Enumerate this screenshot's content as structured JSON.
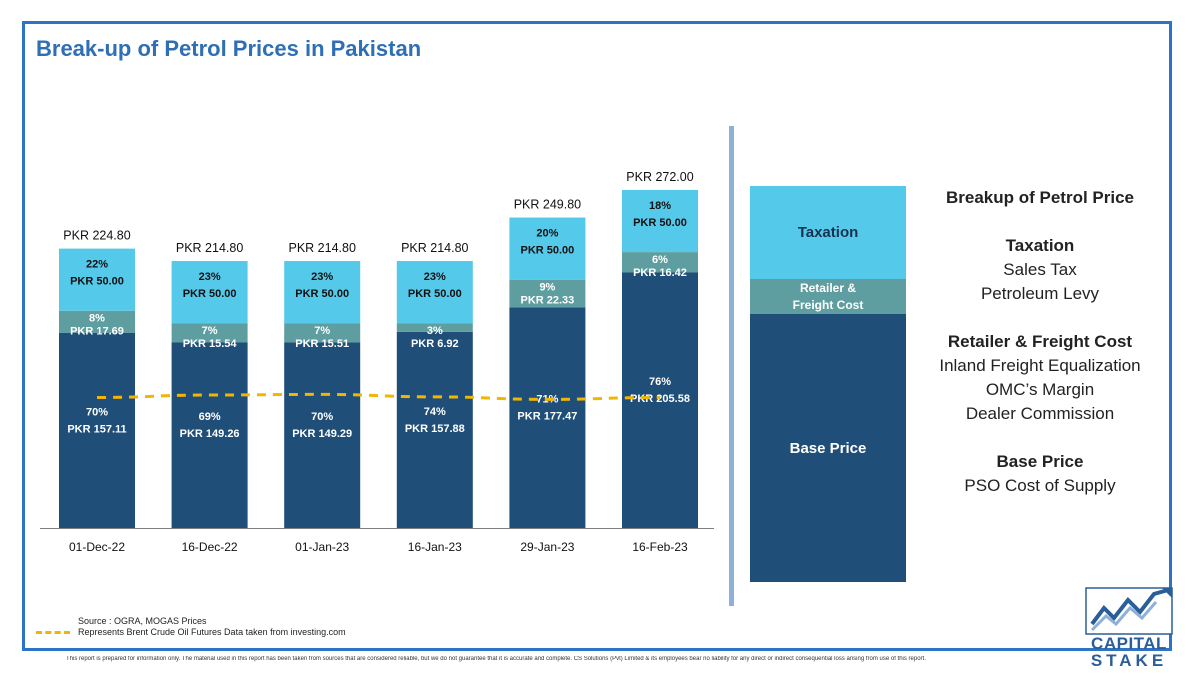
{
  "title": "Break-up of Petrol Prices in Pakistan",
  "chart_data": {
    "type": "bar",
    "stacked": true,
    "categories": [
      "01-Dec-22",
      "16-Dec-22",
      "01-Jan-23",
      "16-Jan-23",
      "29-Jan-23",
      "16-Feb-23"
    ],
    "totals": [
      "PKR 224.80",
      "PKR 214.80",
      "PKR 214.80",
      "PKR 214.80",
      "PKR 249.80",
      "PKR 272.00"
    ],
    "total_values": [
      224.8,
      214.8,
      214.8,
      214.8,
      249.8,
      272.0
    ],
    "ylim": [
      0,
      280
    ],
    "series": [
      {
        "name": "Base Price",
        "color": "#1f4e79",
        "values": [
          157.11,
          149.26,
          149.29,
          157.88,
          177.47,
          205.58
        ],
        "labels": [
          "PKR 157.11",
          "PKR 149.26",
          "PKR 149.29",
          "PKR 157.88",
          "PKR 177.47",
          "PKR 205.58"
        ],
        "pcts": [
          "70%",
          "69%",
          "70%",
          "74%",
          "71%",
          "76%"
        ]
      },
      {
        "name": "Retailer & Freight Cost",
        "color": "#5f9ea0",
        "values": [
          17.69,
          15.54,
          15.51,
          6.92,
          22.33,
          16.42
        ],
        "labels": [
          "PKR 17.69",
          "PKR 15.54",
          "PKR 15.51",
          "PKR 6.92",
          "PKR 22.33",
          "PKR 16.42"
        ],
        "pcts": [
          "8%",
          "7%",
          "7%",
          "3%",
          "9%",
          "6%"
        ]
      },
      {
        "name": "Taxation",
        "color": "#55c9ea",
        "values": [
          50.0,
          50.0,
          50.0,
          50.0,
          50.0,
          50.0
        ],
        "labels": [
          "PKR 50.00",
          "PKR 50.00",
          "PKR 50.00",
          "PKR 50.00",
          "PKR 50.00",
          "PKR 50.00"
        ],
        "pcts": [
          "22%",
          "23%",
          "23%",
          "23%",
          "20%",
          "18%"
        ]
      }
    ],
    "trend_line": {
      "description": "Represents Brent Crude Oil Futures Data taken from investing.com",
      "color": "#f2b600",
      "values": [
        105,
        107,
        107.5,
        105.5,
        103.5,
        105
      ]
    }
  },
  "legend_panel": {
    "taxation": "Taxation",
    "retailer_line1": "Retailer &",
    "retailer_line2": "Freight Cost",
    "base": "Base Price"
  },
  "info_panel": {
    "title": "Breakup of Petrol Price",
    "taxation_head": "Taxation",
    "taxation_items": [
      "Sales Tax",
      "Petroleum Levy"
    ],
    "retailer_head": "Retailer & Freight Cost",
    "retailer_items": [
      "Inland Freight Equalization",
      "OMC’s Margin",
      "Dealer Commission"
    ],
    "base_head": "Base Price",
    "base_items": [
      "PSO Cost of Supply"
    ]
  },
  "source": "Source : OGRA, MOGAS Prices",
  "line_note": "Represents Brent Crude Oil Futures Data taken from investing.com",
  "disclaimer": "This report is prepared for information only. The material used in this report has been taken from sources that are considered reliable, but we do not guarantee that it is accurate and complete. CS Solutions (Pvt) Limited & its employees bear no liability for any direct or indirect consequential loss arising from use of this report.",
  "logo": {
    "word1": "CAPITAL",
    "word2": "STAKE",
    "color": "#2b5e98"
  }
}
